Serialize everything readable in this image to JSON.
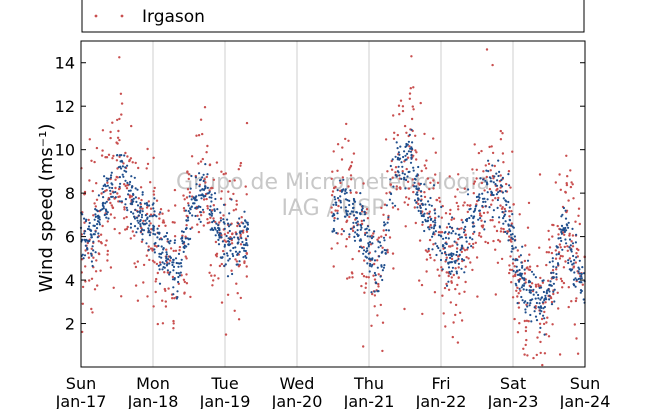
{
  "chart_data": {
    "type": "scatter",
    "title": "",
    "xlabel": "",
    "ylabel": "Wind speed (ms⁻¹)",
    "ylim": [
      0,
      15
    ],
    "yticks": [
      2,
      4,
      6,
      8,
      10,
      12,
      14
    ],
    "xlim": [
      0,
      7
    ],
    "xticks": [
      {
        "x": 0,
        "day": "Sun",
        "date": "Jan-17"
      },
      {
        "x": 1,
        "day": "Mon",
        "date": "Jan-18"
      },
      {
        "x": 2,
        "day": "Tue",
        "date": "Jan-19"
      },
      {
        "x": 3,
        "day": "Wed",
        "date": "Jan-20"
      },
      {
        "x": 4,
        "day": "Thu",
        "date": "Jan-21"
      },
      {
        "x": 5,
        "day": "Fri",
        "date": "Jan-22"
      },
      {
        "x": 6,
        "day": "Sat",
        "date": "Jan-23"
      },
      {
        "x": 7,
        "day": "Sun",
        "date": "Jan-24"
      }
    ],
    "grid": "vertical",
    "legend_position": "top",
    "watermark": [
      "Grupo de Micrometeorologia",
      "IAG / USP"
    ],
    "series": [
      {
        "name": "",
        "color": "#1f4e8c",
        "trend": [
          [
            0.0,
            6.5
          ],
          [
            0.15,
            5.5
          ],
          [
            0.25,
            7.3
          ],
          [
            0.4,
            7.8
          ],
          [
            0.55,
            9.2
          ],
          [
            0.7,
            7.5
          ],
          [
            0.85,
            6.8
          ],
          [
            1.0,
            6.5
          ],
          [
            1.15,
            5.0
          ],
          [
            1.35,
            4.5
          ],
          [
            1.55,
            7.6
          ],
          [
            1.75,
            8.0
          ],
          [
            1.9,
            6.4
          ],
          [
            2.0,
            6.0
          ],
          [
            2.15,
            5.6
          ],
          [
            2.3,
            6.2
          ],
          [
            3.5,
            7.0
          ],
          [
            3.6,
            8.0
          ],
          [
            3.8,
            6.8
          ],
          [
            3.95,
            6.0
          ],
          [
            4.1,
            4.0
          ],
          [
            4.2,
            5.5
          ],
          [
            4.3,
            8.2
          ],
          [
            4.45,
            9.5
          ],
          [
            4.6,
            10.0
          ],
          [
            4.7,
            7.5
          ],
          [
            4.9,
            6.6
          ],
          [
            5.0,
            5.8
          ],
          [
            5.2,
            4.8
          ],
          [
            5.4,
            6.5
          ],
          [
            5.55,
            7.6
          ],
          [
            5.7,
            8.4
          ],
          [
            5.85,
            7.8
          ],
          [
            5.95,
            7.0
          ],
          [
            6.05,
            4.5
          ],
          [
            6.2,
            3.4
          ],
          [
            6.4,
            2.8
          ],
          [
            6.55,
            4.0
          ],
          [
            6.7,
            6.8
          ],
          [
            6.85,
            4.8
          ],
          [
            7.0,
            3.6
          ]
        ],
        "spread": 0.65,
        "count": 1300
      },
      {
        "name": "Irgason",
        "color": "#c94f4f",
        "trend": [
          [
            0.0,
            6.5
          ],
          [
            0.15,
            5.5
          ],
          [
            0.25,
            7.3
          ],
          [
            0.4,
            7.8
          ],
          [
            0.55,
            9.2
          ],
          [
            0.7,
            7.5
          ],
          [
            0.85,
            6.8
          ],
          [
            1.0,
            6.5
          ],
          [
            1.15,
            5.0
          ],
          [
            1.35,
            4.5
          ],
          [
            1.55,
            7.6
          ],
          [
            1.75,
            8.0
          ],
          [
            1.9,
            6.4
          ],
          [
            2.0,
            6.0
          ],
          [
            2.15,
            5.6
          ],
          [
            2.3,
            6.2
          ],
          [
            3.5,
            7.0
          ],
          [
            3.6,
            8.0
          ],
          [
            3.8,
            6.8
          ],
          [
            3.95,
            6.0
          ],
          [
            4.1,
            4.0
          ],
          [
            4.2,
            5.5
          ],
          [
            4.3,
            8.2
          ],
          [
            4.45,
            9.5
          ],
          [
            4.6,
            10.0
          ],
          [
            4.7,
            7.5
          ],
          [
            4.9,
            6.6
          ],
          [
            5.0,
            5.8
          ],
          [
            5.2,
            4.8
          ],
          [
            5.4,
            6.5
          ],
          [
            5.55,
            7.6
          ],
          [
            5.7,
            8.4
          ],
          [
            5.85,
            7.8
          ],
          [
            5.95,
            7.0
          ],
          [
            6.05,
            4.5
          ],
          [
            6.2,
            3.4
          ],
          [
            6.4,
            2.8
          ],
          [
            6.55,
            4.0
          ],
          [
            6.7,
            6.8
          ],
          [
            6.85,
            4.8
          ],
          [
            7.0,
            3.6
          ]
        ],
        "spread": 1.6,
        "count": 1100
      }
    ],
    "data_gaps": [
      [
        2.32,
        3.48
      ]
    ],
    "data_ranges": [
      [
        0.0,
        2.32
      ],
      [
        3.48,
        7.0
      ]
    ]
  }
}
